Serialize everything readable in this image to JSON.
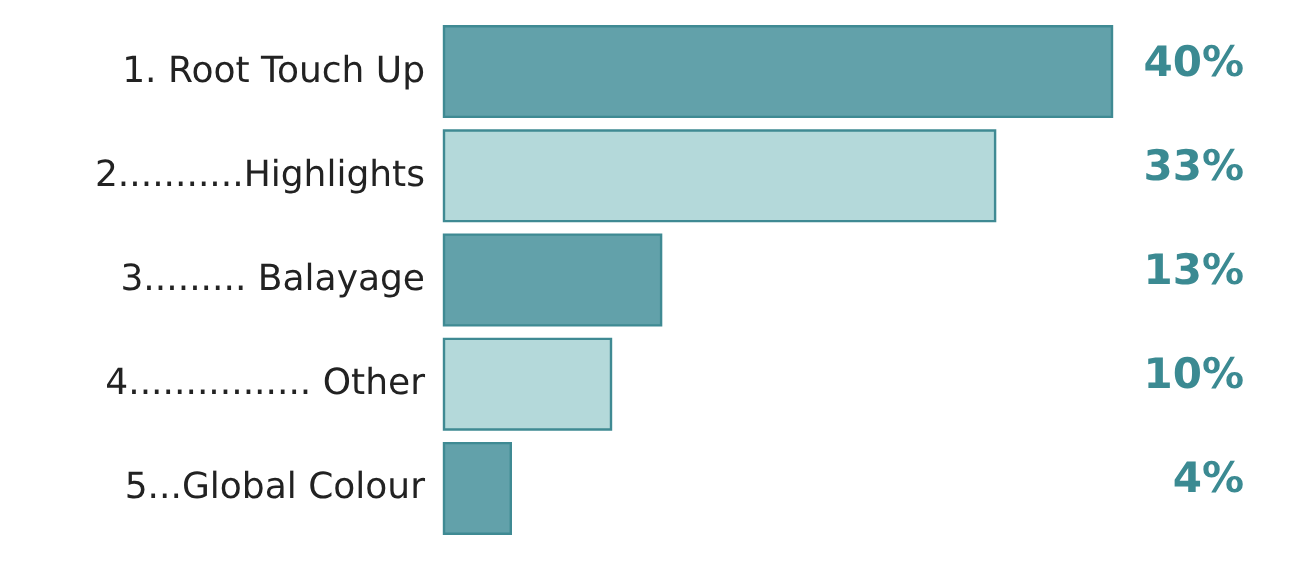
{
  "chart_data": {
    "type": "bar",
    "orientation": "horizontal",
    "categories": [
      "1. Root Touch Up",
      "2...........Highlights",
      "3......... Balayage",
      "4................ Other",
      "5...Global Colour"
    ],
    "values": [
      40,
      33,
      13,
      10,
      4
    ],
    "colors": [
      "#62a1aa",
      "#b4d9da",
      "#62a1aa",
      "#b4d9da",
      "#62a1aa"
    ],
    "value_labels": [
      "40%",
      "33%",
      "13%",
      "10%",
      "4%"
    ]
  }
}
